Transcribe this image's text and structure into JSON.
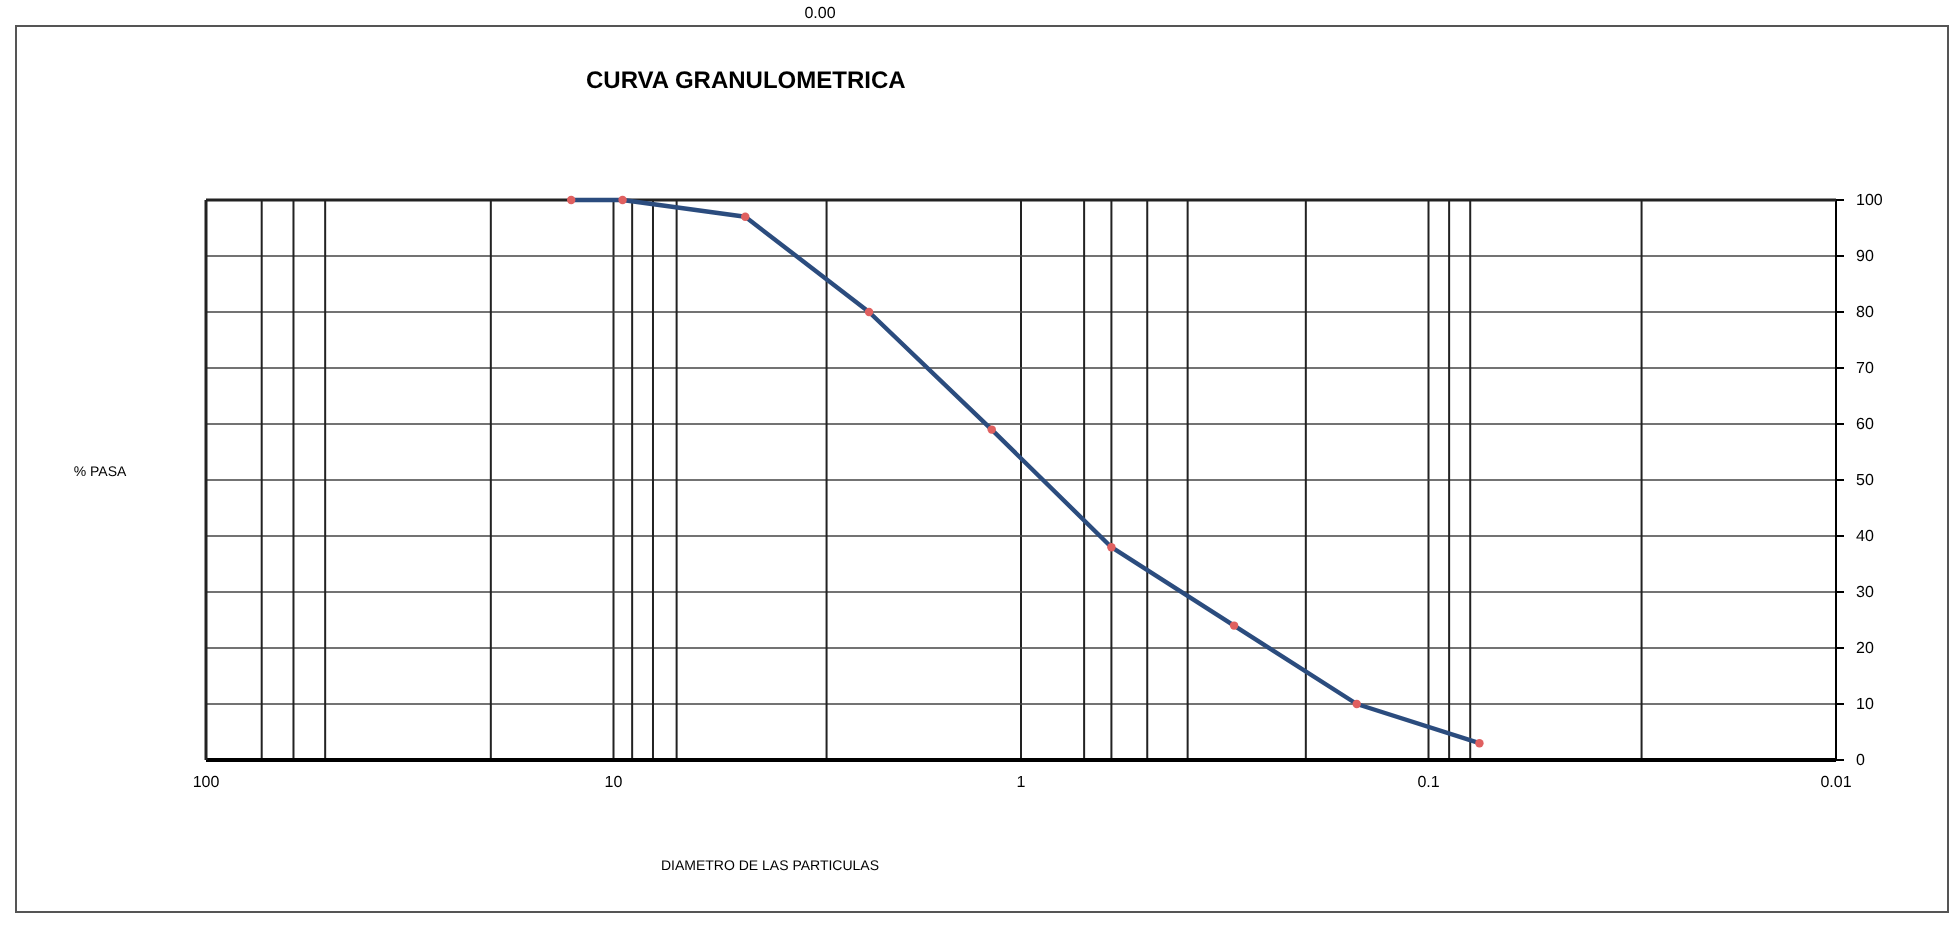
{
  "chart_data": {
    "type": "line",
    "title": "CURVA GRANULOMETRICA",
    "xlabel": "DIAMETRO DE LAS PARTICULAS",
    "ylabel": "% PASA",
    "annotations": [
      "0.00"
    ],
    "x": [
      12.7,
      9.5,
      4.75,
      2.36,
      1.18,
      0.6,
      0.3,
      0.15,
      0.075
    ],
    "series": [
      {
        "color": "#2b4c7e",
        "colors": [
          "#e06060",
          "#e06060",
          "#e06060",
          "#e06060",
          "#e06060",
          "#e06060",
          "#e06060",
          "#e06060",
          "#e06060"
        ],
        "values": [
          100,
          100,
          97,
          80,
          59,
          38,
          24,
          10,
          3
        ]
      }
    ],
    "log": "x",
    "xlim": [
      100,
      0.01
    ],
    "xticks": [
      100,
      10,
      1,
      0.1,
      0.01
    ],
    "ylim": [
      0,
      100
    ],
    "yticks": [
      0,
      10,
      20,
      30,
      40,
      50,
      60,
      70,
      80,
      90,
      100
    ],
    "grid": true,
    "marker": "circle",
    "line_style": "solid",
    "ref_lines": [
      {
        "axis": "x",
        "value": 73
      },
      {
        "axis": "x",
        "value": 61
      },
      {
        "axis": "x",
        "value": 51
      },
      {
        "axis": "x",
        "value": 20
      },
      {
        "axis": "x",
        "value": 9
      },
      {
        "axis": "x",
        "value": 8
      },
      {
        "axis": "x",
        "value": 7
      },
      {
        "axis": "x",
        "value": 3
      },
      {
        "axis": "x",
        "value": 0.7
      },
      {
        "axis": "x",
        "value": 0.6
      },
      {
        "axis": "x",
        "value": 0.49
      },
      {
        "axis": "x",
        "value": 0.39
      },
      {
        "axis": "x",
        "value": 0.2
      },
      {
        "axis": "x",
        "value": 0.089
      },
      {
        "axis": "x",
        "value": 0.079
      },
      {
        "axis": "x",
        "value": 0.03
      }
    ]
  }
}
